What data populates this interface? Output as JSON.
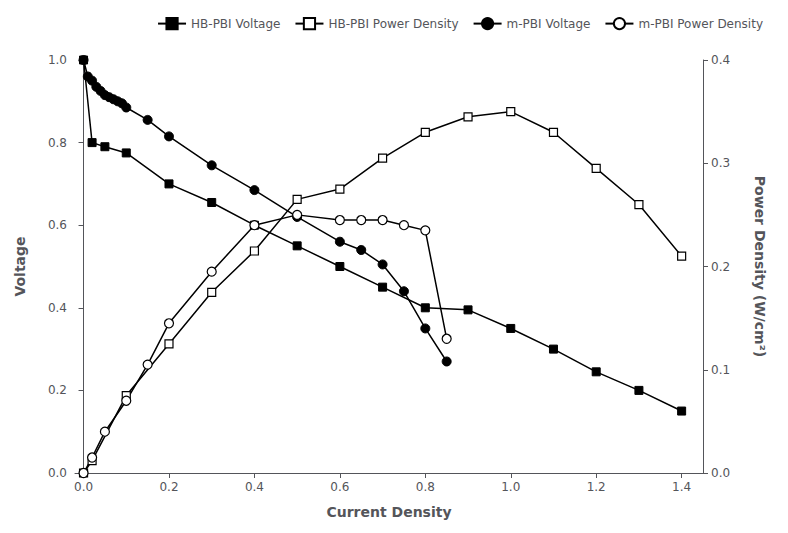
{
  "chart_data": {
    "type": "line",
    "xlabel": "Current Density",
    "ylabel": "Voltage",
    "y2label": "Power Density (W/cm²)",
    "xlim": [
      -0.02,
      1.45
    ],
    "xticks": [
      {
        "value": 0.0,
        "label": "0.0"
      },
      0.2,
      0.4,
      0.6,
      0.8,
      {
        "value": 1.0,
        "label": "1.0"
      },
      1.2,
      1.4
    ],
    "ylim": [
      0.0,
      1.0
    ],
    "yticks": [
      {
        "value": 0.0,
        "label": "0.0"
      },
      0.2,
      0.4,
      0.6,
      0.8,
      {
        "value": 1.0,
        "label": "1.0"
      }
    ],
    "y2lim": [
      0.0,
      0.4
    ],
    "y2ticks": [
      {
        "value": 0.0,
        "label": "0.0"
      },
      0.1,
      0.2,
      0.3,
      0.4
    ],
    "grid": false,
    "legend": "upper right",
    "series": [
      {
        "name": "HB-PBI Voltage",
        "axis": "y",
        "color": "#000000",
        "marker": "square",
        "x": [
          0.0,
          0.02,
          0.05,
          0.1,
          0.2,
          0.3,
          0.4,
          0.5,
          0.6,
          0.7,
          0.8,
          0.9,
          1.0,
          1.1,
          1.2,
          1.3,
          1.4
        ],
        "values": [
          1.0,
          0.8,
          0.79,
          0.775,
          0.7,
          0.655,
          0.6,
          0.55,
          0.5,
          0.45,
          0.4,
          0.395,
          0.35,
          0.3,
          0.245,
          0.2,
          0.15
        ]
      },
      {
        "name": "HB-PBI Power Density",
        "axis": "y2",
        "color": "#000000",
        "marker": "square_open",
        "x": [
          0.0,
          0.02,
          0.1,
          0.2,
          0.3,
          0.4,
          0.5,
          0.6,
          0.7,
          0.8,
          0.9,
          1.0,
          1.1,
          1.2,
          1.3,
          1.4
        ],
        "values": [
          0.0,
          0.012,
          0.075,
          0.125,
          0.175,
          0.215,
          0.265,
          0.275,
          0.305,
          0.33,
          0.345,
          0.35,
          0.33,
          0.295,
          0.26,
          0.21
        ]
      },
      {
        "name": "m-PBI Voltage",
        "axis": "y",
        "color": "#000000",
        "marker": "circle",
        "x": [
          0.0,
          0.01,
          0.02,
          0.03,
          0.04,
          0.05,
          0.06,
          0.07,
          0.08,
          0.09,
          0.1,
          0.15,
          0.2,
          0.3,
          0.4,
          0.5,
          0.6,
          0.65,
          0.7,
          0.75,
          0.8,
          0.85
        ],
        "values": [
          1.0,
          0.96,
          0.95,
          0.935,
          0.925,
          0.915,
          0.91,
          0.905,
          0.9,
          0.895,
          0.885,
          0.855,
          0.815,
          0.745,
          0.685,
          0.62,
          0.56,
          0.54,
          0.505,
          0.44,
          0.35,
          0.27
        ]
      },
      {
        "name": "m-PBI Power Density",
        "axis": "y2",
        "color": "#000000",
        "marker": "circle_open",
        "x": [
          0.0,
          0.02,
          0.05,
          0.1,
          0.15,
          0.2,
          0.3,
          0.4,
          0.5,
          0.6,
          0.65,
          0.7,
          0.75,
          0.8,
          0.85
        ],
        "values": [
          0.0,
          0.015,
          0.04,
          0.07,
          0.105,
          0.145,
          0.195,
          0.24,
          0.25,
          0.245,
          0.245,
          0.245,
          0.24,
          0.235,
          0.13
        ]
      }
    ]
  }
}
